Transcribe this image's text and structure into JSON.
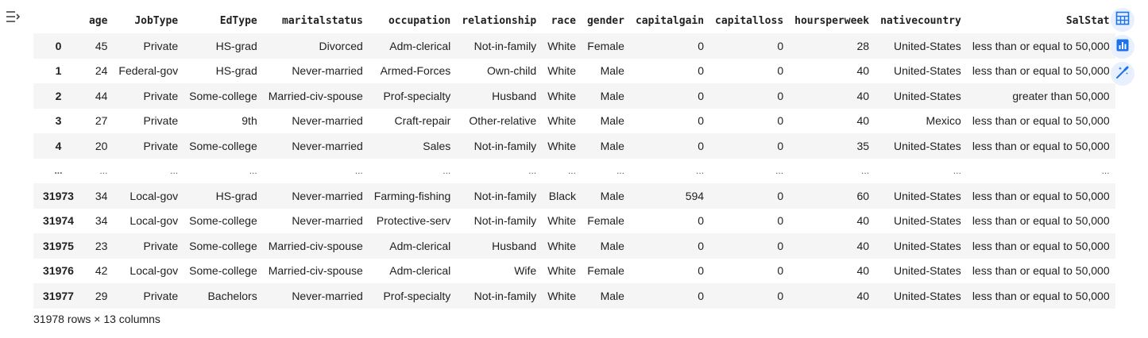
{
  "columns": [
    "",
    "age",
    "JobType",
    "EdType",
    "maritalstatus",
    "occupation",
    "relationship",
    "race",
    "gender",
    "capitalgain",
    "capitalloss",
    "hoursperweek",
    "nativecountry",
    "SalStat"
  ],
  "rows": [
    [
      "0",
      "45",
      "Private",
      "HS-grad",
      "Divorced",
      "Adm-clerical",
      "Not-in-family",
      "White",
      "Female",
      "0",
      "0",
      "28",
      "United-States",
      "less than or equal to 50,000"
    ],
    [
      "1",
      "24",
      "Federal-gov",
      "HS-grad",
      "Never-married",
      "Armed-Forces",
      "Own-child",
      "White",
      "Male",
      "0",
      "0",
      "40",
      "United-States",
      "less than or equal to 50,000"
    ],
    [
      "2",
      "44",
      "Private",
      "Some-college",
      "Married-civ-spouse",
      "Prof-specialty",
      "Husband",
      "White",
      "Male",
      "0",
      "0",
      "40",
      "United-States",
      "greater than 50,000"
    ],
    [
      "3",
      "27",
      "Private",
      "9th",
      "Never-married",
      "Craft-repair",
      "Other-relative",
      "White",
      "Male",
      "0",
      "0",
      "40",
      "Mexico",
      "less than or equal to 50,000"
    ],
    [
      "4",
      "20",
      "Private",
      "Some-college",
      "Never-married",
      "Sales",
      "Not-in-family",
      "White",
      "Male",
      "0",
      "0",
      "35",
      "United-States",
      "less than or equal to 50,000"
    ],
    [
      "...",
      "...",
      "...",
      "...",
      "...",
      "...",
      "...",
      "...",
      "...",
      "...",
      "...",
      "...",
      "...",
      "..."
    ],
    [
      "31973",
      "34",
      "Local-gov",
      "HS-grad",
      "Never-married",
      "Farming-fishing",
      "Not-in-family",
      "Black",
      "Male",
      "594",
      "0",
      "60",
      "United-States",
      "less than or equal to 50,000"
    ],
    [
      "31974",
      "34",
      "Local-gov",
      "Some-college",
      "Never-married",
      "Protective-serv",
      "Not-in-family",
      "White",
      "Female",
      "0",
      "0",
      "40",
      "United-States",
      "less than or equal to 50,000"
    ],
    [
      "31975",
      "23",
      "Private",
      "Some-college",
      "Married-civ-spouse",
      "Adm-clerical",
      "Husband",
      "White",
      "Male",
      "0",
      "0",
      "40",
      "United-States",
      "less than or equal to 50,000"
    ],
    [
      "31976",
      "42",
      "Local-gov",
      "Some-college",
      "Married-civ-spouse",
      "Adm-clerical",
      "Wife",
      "White",
      "Female",
      "0",
      "0",
      "40",
      "United-States",
      "less than or equal to 50,000"
    ],
    [
      "31977",
      "29",
      "Private",
      "Bachelors",
      "Never-married",
      "Prof-specialty",
      "Not-in-family",
      "White",
      "Male",
      "0",
      "0",
      "40",
      "United-States",
      "less than or equal to 50,000"
    ]
  ],
  "footer": "31978 rows × 13 columns",
  "icons": {
    "output_toggle": "output-toggle-icon",
    "convert_table": "table-icon",
    "suggest_charts": "bar-chart-icon",
    "generate_code": "magic-wand-icon"
  },
  "colors": {
    "accent": "#1a73e8",
    "button_bg": "#e8f0fe",
    "stripe": "#f5f5f5"
  }
}
